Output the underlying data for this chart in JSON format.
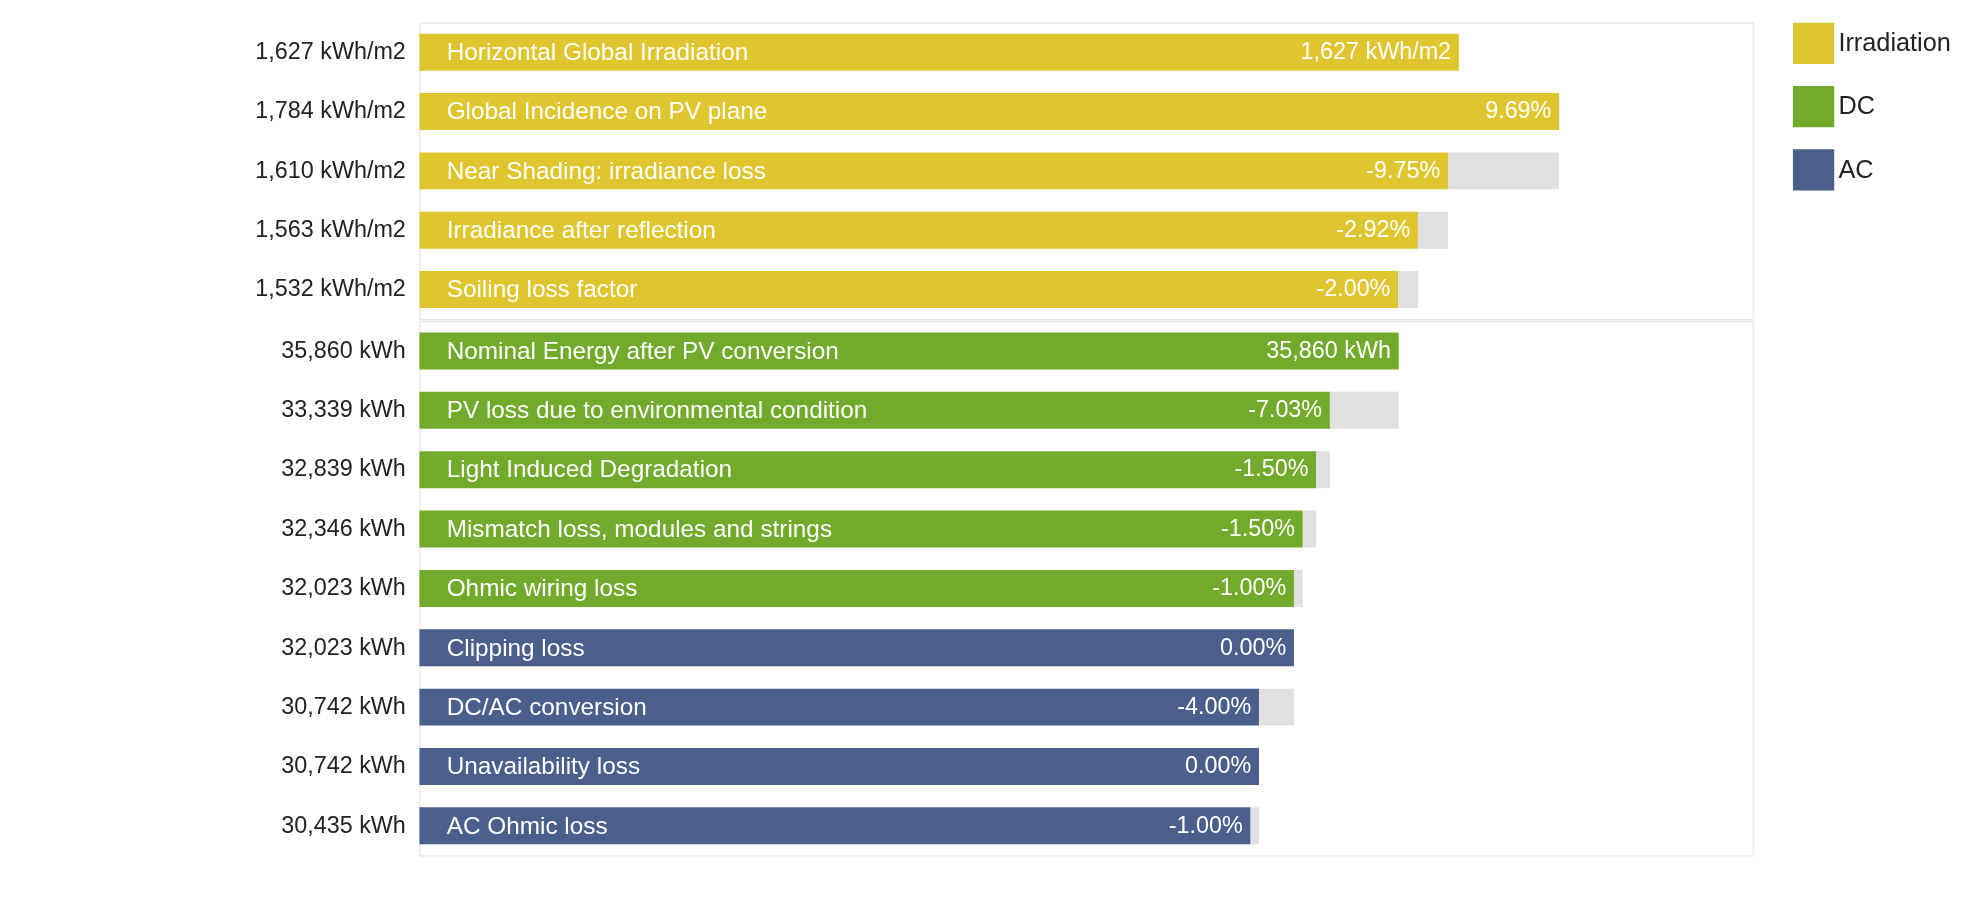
{
  "chart_data": [
    {
      "type": "bar",
      "orientation": "horizontal",
      "stacked": true,
      "legend": "top right",
      "tick_labels": false,
      "xlim": [
        0,
        2087
      ],
      "categories": [
        "Horizontal Global Irradiation",
        "Global Incidence on PV plane",
        "Near Shading: irradiance loss",
        "Irradiance after reflection",
        "Soiling loss factor"
      ],
      "series": [
        {
          "name": "Irradiation",
          "color": "#dfc62f",
          "values": [
            1627,
            1784,
            1610,
            1563,
            1532
          ],
          "value_labels": [
            "1,627  kWh/m2",
            "1,784  kWh/m2",
            "1,610  kWh/m2",
            "1,563  kWh/m2",
            "1,532  kWh/m2"
          ]
        },
        {
          "color": "#e0e0e0",
          "values": [
            null,
            null,
            174,
            47,
            31
          ]
        }
      ],
      "annotations": [
        {
          "text": "1,627  kWh/m2",
          "x": 1627,
          "y": "Horizontal Global Irradiation"
        },
        {
          "text": "9.69%",
          "x": 1784,
          "y": "Global Incidence on PV plane"
        },
        {
          "text": "-9.75%",
          "x": 1610,
          "y": "Near Shading: irradiance loss"
        },
        {
          "text": "-2.92%",
          "x": 1563,
          "y": "Irradiance after reflection"
        },
        {
          "text": "-2.00%",
          "x": 1532,
          "y": "Soiling loss factor"
        }
      ]
    },
    {
      "type": "bar",
      "orientation": "horizontal",
      "stacked": true,
      "legend": "top right",
      "tick_labels": false,
      "xlim": [
        0,
        48823
      ],
      "categories": [
        "Nominal Energy after PV conversion",
        "PV loss due to environmental condition",
        "Light Induced Degradation",
        "Mismatch loss, modules and strings",
        "Ohmic wiring loss",
        "Clipping loss",
        "DC/AC conversion",
        "Unavailability loss",
        "AC Ohmic loss"
      ],
      "series": [
        {
          "name": "DC",
          "color": "#72ab2b",
          "values": [
            35860,
            33339,
            32839,
            32346,
            32023,
            null,
            null,
            null,
            null
          ],
          "value_labels": [
            "35,860  kWh",
            "33,339  kWh",
            "32,839  kWh",
            "32,346  kWh",
            "32,023  kWh",
            null,
            null,
            null,
            null
          ]
        },
        {
          "name": "AC",
          "color": "#4b5f8c",
          "values": [
            null,
            null,
            null,
            null,
            null,
            32023,
            30742,
            30742,
            30435
          ],
          "value_labels": [
            null,
            null,
            null,
            null,
            null,
            "32,023  kWh",
            "30,742  kWh",
            "30,742  kWh",
            "30,435  kWh"
          ]
        },
        {
          "color": "#e0e0e0",
          "values": [
            null,
            2521,
            500,
            493,
            323,
            null,
            1281,
            null,
            307
          ]
        }
      ],
      "annotations": [
        {
          "text": "35,860  kWh",
          "x": 35860,
          "y": "Nominal Energy after PV conversion"
        },
        {
          "text": "-7.03%",
          "x": 33339,
          "y": "PV loss due to environmental condition"
        },
        {
          "text": "-1.50%",
          "x": 32839,
          "y": "Light Induced Degradation"
        },
        {
          "text": "-1.50%",
          "x": 32346,
          "y": "Mismatch loss, modules and strings"
        },
        {
          "text": "-1.00%",
          "x": 32023,
          "y": "Ohmic wiring loss"
        },
        {
          "text": "0.00%",
          "x": 32023,
          "y": "Clipping loss"
        },
        {
          "text": "-4.00%",
          "x": 30742,
          "y": "DC/AC conversion"
        },
        {
          "text": "0.00%",
          "x": 30742,
          "y": "Unavailability loss"
        },
        {
          "text": "-1.00%",
          "x": 30435,
          "y": "AC Ohmic loss"
        }
      ]
    }
  ]
}
